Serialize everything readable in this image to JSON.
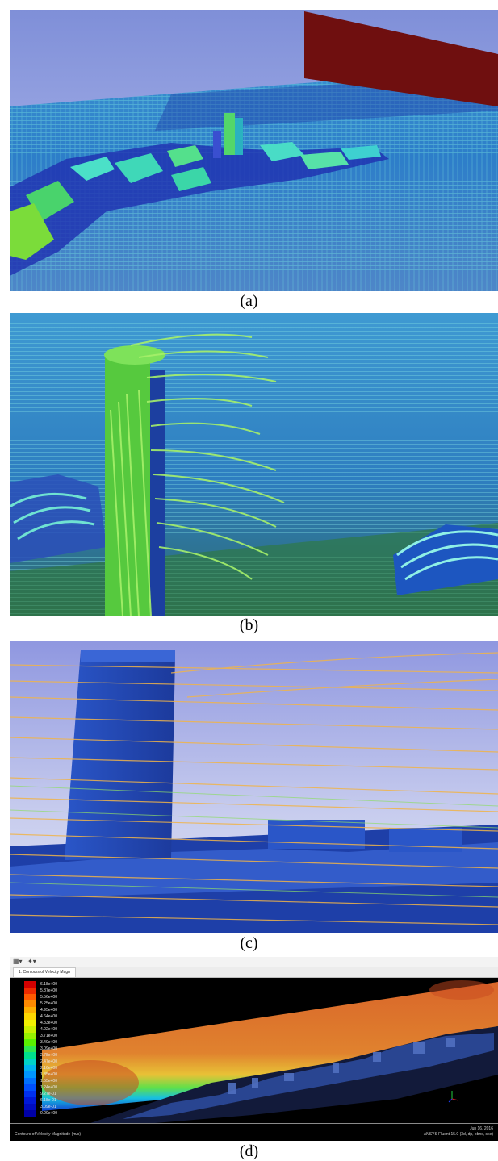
{
  "captions": {
    "a": "(a)",
    "b": "(b)",
    "c": "(c)",
    "d": "(d)"
  },
  "fluent": {
    "toolbar_icons": [
      "grid-icon",
      "tool-icon"
    ],
    "tab_label": "1: Contours of Velocity Magn",
    "legend_values": [
      "6.18e+00",
      "5.87e+00",
      "5.56e+00",
      "5.25e+00",
      "4.95e+00",
      "4.64e+00",
      "4.33e+00",
      "4.02e+00",
      "3.71e+00",
      "3.40e+00",
      "3.09e+00",
      "2.78e+00",
      "2.47e+00",
      "2.16e+00",
      "1.85e+00",
      "1.55e+00",
      "1.24e+00",
      "9.27e-01",
      "6.18e-01",
      "3.09e-01",
      "0.00e+00"
    ],
    "legend_colors": [
      "#d40000",
      "#ee2a00",
      "#ff5a00",
      "#ff8a00",
      "#ffb000",
      "#ffd600",
      "#f0f000",
      "#c8f000",
      "#96f000",
      "#5af000",
      "#2ee850",
      "#00e08c",
      "#00d2c8",
      "#00b4f0",
      "#0096ff",
      "#0070ff",
      "#0050ff",
      "#0030f0",
      "#0018d8",
      "#000cc0",
      "#0000a8"
    ],
    "status_left": "Contours of Velocity Magnitude (m/s)",
    "status_date": "Jun 16, 2016",
    "status_version": "ANSYS Fluent 15.0 (3d, dp, pbns, ske)"
  }
}
